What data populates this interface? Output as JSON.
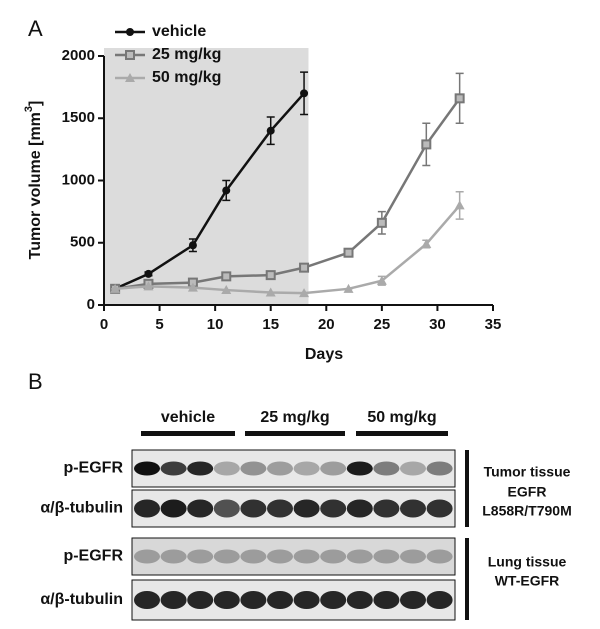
{
  "panel_labels": [
    "A",
    "B"
  ],
  "chart_data": {
    "type": "line",
    "x_label": "Days",
    "y_label_parts": [
      "Tumor volume [mm",
      "3",
      "]"
    ],
    "xlim": [
      0,
      35
    ],
    "xticks": [
      0,
      5,
      10,
      15,
      20,
      25,
      30,
      35
    ],
    "ylim": [
      0,
      2000
    ],
    "yticks": [
      0,
      500,
      1000,
      1500,
      2000
    ],
    "shaded_region": [
      0,
      18.4
    ],
    "legend": "top-left",
    "series": [
      {
        "name": "vehicle",
        "color": "#111111",
        "marker": "circle",
        "x": [
          1,
          4,
          8,
          11,
          15,
          18
        ],
        "values": [
          130,
          250,
          480,
          920,
          1400,
          1700
        ],
        "errors": [
          0,
          15,
          50,
          80,
          110,
          170
        ]
      },
      {
        "name": "25 mg/kg",
        "color": "#777777",
        "marker": "square",
        "x": [
          1,
          4,
          8,
          11,
          15,
          18,
          22,
          25,
          29,
          32
        ],
        "values": [
          130,
          170,
          180,
          230,
          240,
          300,
          420,
          660,
          1290,
          1660
        ],
        "errors": [
          0,
          10,
          10,
          15,
          15,
          20,
          30,
          90,
          170,
          200
        ]
      },
      {
        "name": "50 mg/kg",
        "color": "#aaaaaa",
        "marker": "triangle",
        "x": [
          1,
          4,
          8,
          11,
          15,
          18,
          22,
          25,
          29,
          32
        ],
        "values": [
          130,
          150,
          140,
          120,
          100,
          95,
          130,
          195,
          490,
          800
        ],
        "errors": [
          0,
          0,
          0,
          0,
          0,
          0,
          0,
          35,
          30,
          110
        ]
      }
    ]
  },
  "blot": {
    "groups": [
      "vehicle",
      "25 mg/kg",
      "50 mg/kg"
    ],
    "rows": [
      "p-EGFR",
      "α/β-tubulin",
      "p-EGFR",
      "α/β-tubulin"
    ],
    "tissues": [
      [
        "Tumor tissue",
        "EGFR",
        "L858R/T790M"
      ],
      [
        "Lung tissue",
        "WT-EGFR"
      ]
    ]
  }
}
